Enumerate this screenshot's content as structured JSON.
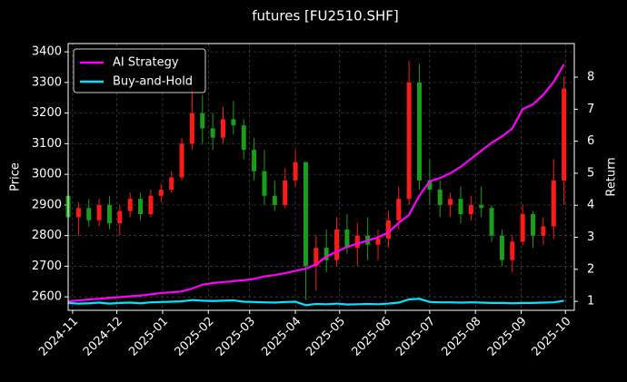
{
  "chart_data": {
    "type": "candlestick",
    "title": "futures [FU2510.SHF]",
    "ylabel": "Price",
    "y2label": "Return",
    "x": [
      "2024-10-29",
      "2024-11-05",
      "2024-11-12",
      "2024-11-19",
      "2024-11-26",
      "2024-12-03",
      "2024-12-10",
      "2024-12-17",
      "2024-12-24",
      "2024-12-31",
      "2025-01-07",
      "2025-01-14",
      "2025-01-21",
      "2025-01-28",
      "2025-02-04",
      "2025-02-11",
      "2025-02-18",
      "2025-02-25",
      "2025-03-04",
      "2025-03-11",
      "2025-03-18",
      "2025-03-25",
      "2025-04-01",
      "2025-04-08",
      "2025-04-15",
      "2025-04-22",
      "2025-04-29",
      "2025-05-06",
      "2025-05-13",
      "2025-05-20",
      "2025-05-27",
      "2025-06-03",
      "2025-06-10",
      "2025-06-17",
      "2025-06-24",
      "2025-07-01",
      "2025-07-08",
      "2025-07-15",
      "2025-07-22",
      "2025-07-29",
      "2025-08-05",
      "2025-08-12",
      "2025-08-19",
      "2025-08-26",
      "2025-09-02",
      "2025-09-09",
      "2025-09-16",
      "2025-09-23",
      "2025-09-30"
    ],
    "open": [
      2930,
      2860,
      2890,
      2850,
      2900,
      2840,
      2880,
      2920,
      2870,
      2930,
      2950,
      2990,
      3100,
      3200,
      3150,
      3120,
      3180,
      3160,
      3080,
      3010,
      2930,
      2900,
      2980,
      3040,
      2700,
      2760,
      2720,
      2820,
      2760,
      2800,
      2770,
      2790,
      2850,
      2920,
      3300,
      2980,
      2950,
      2900,
      2920,
      2870,
      2900,
      2890,
      2800,
      2720,
      2780,
      2870,
      2800,
      2830,
      2980
    ],
    "high": [
      2950,
      2910,
      2920,
      2920,
      2930,
      2900,
      2940,
      2940,
      2950,
      2970,
      3010,
      3120,
      3290,
      3260,
      3200,
      3220,
      3240,
      3180,
      3120,
      3080,
      2980,
      3020,
      3080,
      3040,
      2800,
      2820,
      2860,
      2870,
      2840,
      2860,
      2820,
      2880,
      2960,
      3370,
      3360,
      3050,
      2980,
      2940,
      2960,
      2930,
      2960,
      2900,
      2820,
      2800,
      2900,
      2880,
      2860,
      3050,
      3320
    ],
    "low": [
      2840,
      2800,
      2830,
      2830,
      2820,
      2800,
      2860,
      2850,
      2860,
      2910,
      2940,
      2980,
      3080,
      3100,
      3080,
      3100,
      3130,
      3050,
      2980,
      2900,
      2880,
      2890,
      2960,
      2590,
      2620,
      2680,
      2700,
      2740,
      2700,
      2720,
      2720,
      2760,
      2820,
      2900,
      2950,
      2900,
      2860,
      2860,
      2840,
      2850,
      2860,
      2780,
      2700,
      2680,
      2770,
      2760,
      2770,
      2790,
      2900
    ],
    "close": [
      2860,
      2890,
      2850,
      2900,
      2840,
      2880,
      2920,
      2870,
      2930,
      2950,
      2990,
      3100,
      3200,
      3150,
      3120,
      3180,
      3160,
      3080,
      3010,
      2930,
      2900,
      2980,
      3040,
      2700,
      2760,
      2720,
      2820,
      2760,
      2800,
      2770,
      2790,
      2850,
      2920,
      3300,
      2980,
      2950,
      2900,
      2920,
      2870,
      2900,
      2890,
      2800,
      2720,
      2780,
      2870,
      2800,
      2830,
      2980,
      3280
    ],
    "up_color": "#ff1a1a",
    "down_color": "#1a9e1a",
    "series": [
      {
        "name": "AI Strategy",
        "type": "line",
        "axis": "y2",
        "color": "#ff00ff",
        "values": [
          1.0,
          1.03,
          1.06,
          1.08,
          1.11,
          1.13,
          1.16,
          1.18,
          1.22,
          1.26,
          1.28,
          1.31,
          1.4,
          1.52,
          1.57,
          1.6,
          1.63,
          1.66,
          1.7,
          1.78,
          1.82,
          1.88,
          1.95,
          2.02,
          2.15,
          2.4,
          2.55,
          2.7,
          2.8,
          2.9,
          3.0,
          3.15,
          3.45,
          3.7,
          4.3,
          4.75,
          4.85,
          5.0,
          5.2,
          5.45,
          5.7,
          5.95,
          6.15,
          6.4,
          7.0,
          7.15,
          7.45,
          7.85,
          8.4
        ]
      },
      {
        "name": "Buy-and-Hold",
        "type": "line",
        "axis": "y2",
        "color": "#00e5ff",
        "values": [
          0.95,
          0.93,
          0.94,
          0.96,
          0.93,
          0.95,
          0.96,
          0.94,
          0.97,
          0.98,
          0.99,
          1.0,
          1.04,
          1.02,
          1.01,
          1.02,
          1.03,
          0.99,
          0.98,
          0.97,
          0.96,
          0.98,
          0.99,
          0.88,
          0.92,
          0.91,
          0.93,
          0.9,
          0.91,
          0.92,
          0.91,
          0.93,
          0.96,
          1.06,
          1.08,
          0.98,
          0.97,
          0.97,
          0.96,
          0.97,
          0.96,
          0.95,
          0.95,
          0.94,
          0.95,
          0.95,
          0.96,
          0.97,
          1.02
        ]
      }
    ],
    "xlim": [
      "2024-10-29",
      "2025-10-07"
    ],
    "xticks": [
      {
        "value": "2024-11-01",
        "label": "2024-11"
      },
      {
        "value": "2024-12-01",
        "label": "2024-12"
      },
      {
        "value": "2025-01-01",
        "label": "2025-01"
      },
      {
        "value": "2025-02-01",
        "label": "2025-02"
      },
      {
        "value": "2025-03-01",
        "label": "2025-03"
      },
      {
        "value": "2025-04-01",
        "label": "2025-04"
      },
      {
        "value": "2025-05-01",
        "label": "2025-05"
      },
      {
        "value": "2025-06-01",
        "label": "2025-06"
      },
      {
        "value": "2025-07-01",
        "label": "2025-07"
      },
      {
        "value": "2025-08-01",
        "label": "2025-08"
      },
      {
        "value": "2025-09-01",
        "label": "2025-09"
      },
      {
        "value": "2025-10-01",
        "label": "2025-10"
      }
    ],
    "ylim": [
      2556,
      3427
    ],
    "yticks": [
      2600,
      2700,
      2800,
      2900,
      3000,
      3100,
      3200,
      3300,
      3400
    ],
    "y2lim": [
      0.72,
      9.05
    ],
    "y2ticks": [
      1,
      2,
      3,
      4,
      5,
      6,
      7,
      8
    ],
    "grid": true,
    "legend": "upper left"
  }
}
